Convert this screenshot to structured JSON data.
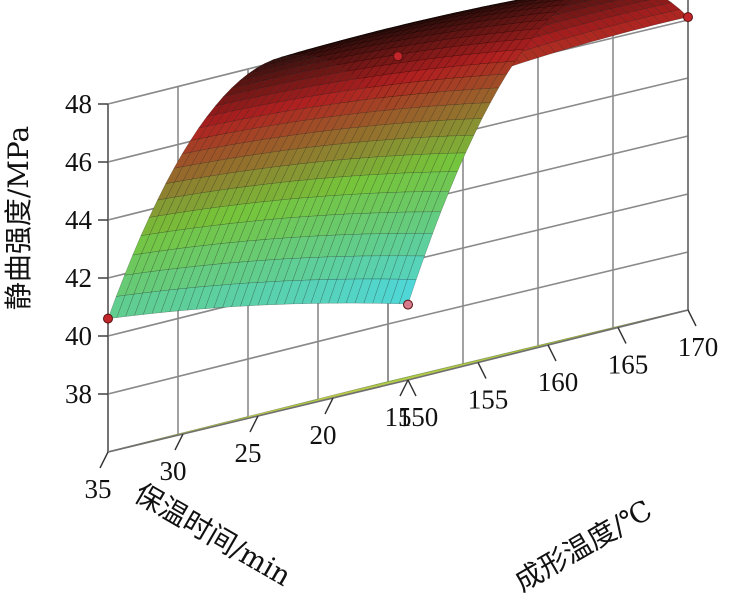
{
  "chart_data": {
    "type": "surface3d",
    "x": {
      "label": "成形温度/℃",
      "ticks": [
        "150",
        "155",
        "160",
        "165",
        "170"
      ],
      "range": [
        150,
        170
      ]
    },
    "y": {
      "label": "保温时间/min",
      "ticks": [
        "15",
        "20",
        "25",
        "30",
        "35"
      ],
      "range": [
        15,
        35
      ]
    },
    "z": {
      "label": "静曲强度/MPa",
      "ticks": [
        "38",
        "40",
        "42",
        "44",
        "46",
        "48"
      ],
      "range": [
        36,
        48
      ]
    },
    "surface_samples": [
      {
        "x": 150,
        "y": 15,
        "z": 38.6
      },
      {
        "x": 150,
        "y": 35,
        "z": 40.6
      },
      {
        "x": 170,
        "y": 35,
        "z": 45.4
      },
      {
        "x": 170,
        "y": 15,
        "z": 46.1
      },
      {
        "x": 163,
        "y": 27,
        "z": 48.2
      }
    ],
    "design_points": [
      {
        "x": 150,
        "y": 15,
        "z": 38.6
      },
      {
        "x": 150,
        "y": 35,
        "z": 40.6
      },
      {
        "x": 170,
        "y": 15,
        "z": 46.1
      },
      {
        "x": 160,
        "y": 25,
        "z": 47.2
      }
    ],
    "contour_floor": true,
    "colors": {
      "surface_low": "#4fd6d6",
      "surface_mid": "#76c43a",
      "surface_high": "#b02020",
      "surface_top": "#2a0d0a",
      "floor": "#e8ef2a",
      "contour_inner": "#e07a2a",
      "contour_outer": "#5ad05a"
    }
  }
}
